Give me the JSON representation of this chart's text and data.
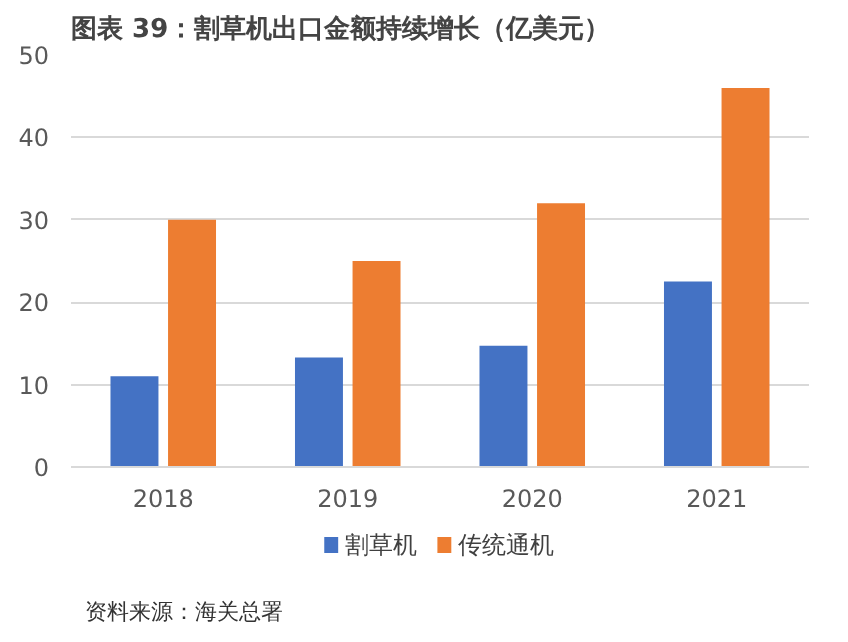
{
  "chart_data": {
    "type": "bar",
    "title": "图表 39：割草机出口金额持续增长（亿美元）",
    "categories": [
      "2018",
      "2019",
      "2020",
      "2021"
    ],
    "series": [
      {
        "name": "割草机",
        "color": "#4472c4",
        "values": [
          11,
          13.3,
          14.7,
          22.5
        ]
      },
      {
        "name": "传统通机",
        "color": "#ed7d31",
        "values": [
          30,
          25,
          32,
          46
        ]
      }
    ],
    "ylim": [
      0,
      50
    ],
    "yticks": [
      0,
      10,
      20,
      30,
      40,
      50
    ],
    "grid": "y",
    "legend": "bottom",
    "annotations": [
      "资料来源：海关总署"
    ]
  }
}
